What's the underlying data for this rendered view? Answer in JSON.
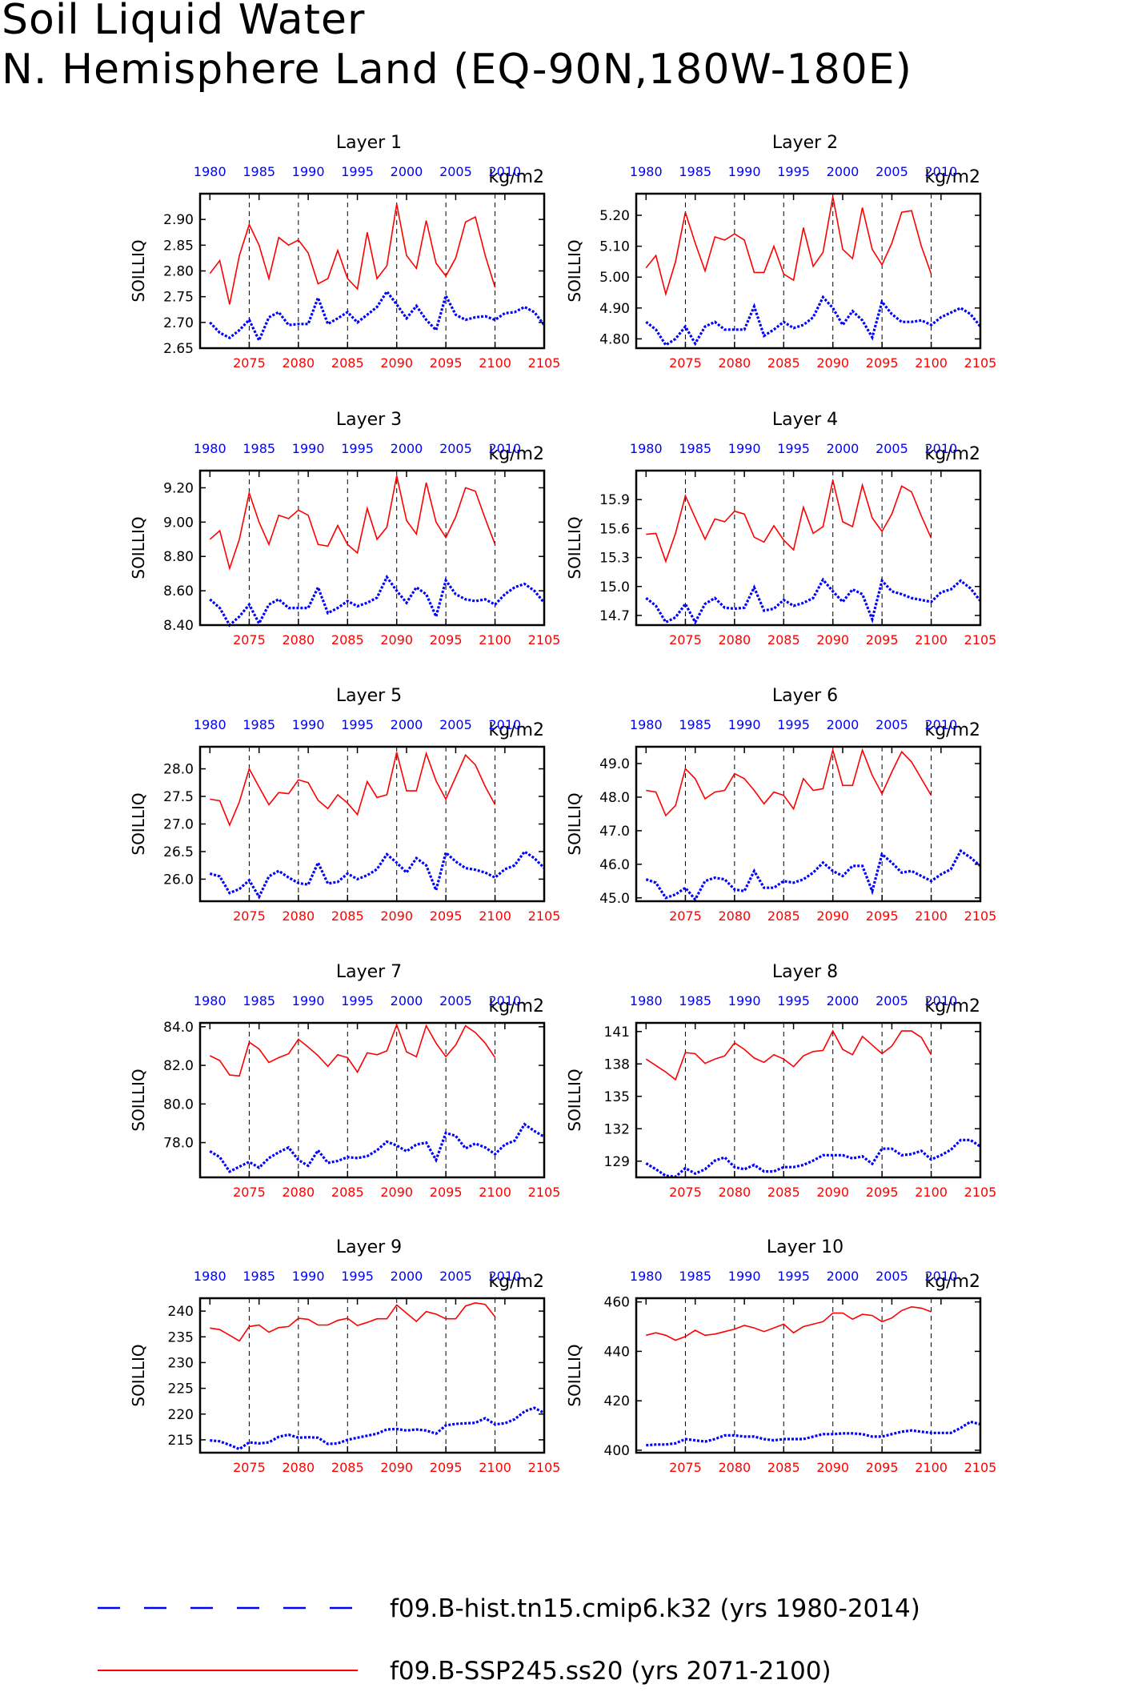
{
  "title": [
    "Soil Liquid Water",
    "N. Hemisphere Land (EQ-90N,180W-180E)"
  ],
  "legend": [
    {
      "label": "f09.B-hist.tn15.cmip6.k32 (yrs 1980-2014)",
      "color": "#0000ff",
      "style": "dashed"
    },
    {
      "label": "f09.B-SSP245.ss20 (yrs 2071-2100)",
      "color": "#ff0000",
      "style": "solid"
    }
  ],
  "colors": {
    "hist": "#0000ff",
    "future": "#ff0000",
    "axis": "#000000"
  },
  "chart_data": [
    {
      "type": "line",
      "title": "Layer 1",
      "units": "kg/m2",
      "ylabel": "SOILLIQ",
      "ylim": [
        2.65,
        2.95
      ],
      "yticks": [
        2.65,
        2.7,
        2.75,
        2.8,
        2.85,
        2.9
      ],
      "yfmt": 2,
      "series": [
        {
          "values": [
            2.7,
            2.68,
            2.67,
            2.685,
            2.705,
            2.665,
            2.71,
            2.72,
            2.695,
            2.697,
            2.697,
            2.748,
            2.697,
            2.708,
            2.72,
            2.7,
            2.715,
            2.73,
            2.76,
            2.735,
            2.708,
            2.732,
            2.705,
            2.685,
            2.752,
            2.715,
            2.705,
            2.71,
            2.712,
            2.705,
            2.718,
            2.72,
            2.73,
            2.72,
            2.695
          ]
        },
        {
          "values": [
            2.795,
            2.82,
            2.735,
            2.83,
            2.89,
            2.85,
            2.785,
            2.865,
            2.85,
            2.86,
            2.835,
            2.775,
            2.785,
            2.84,
            2.785,
            2.765,
            2.875,
            2.785,
            2.81,
            2.93,
            2.83,
            2.805,
            2.898,
            2.815,
            2.79,
            2.825,
            2.895,
            2.905,
            2.83,
            2.768
          ]
        }
      ]
    },
    {
      "type": "line",
      "title": "Layer 2",
      "units": "kg/m2",
      "ylabel": "SOILLIQ",
      "ylim": [
        4.77,
        5.27
      ],
      "yticks": [
        4.8,
        4.9,
        5.0,
        5.1,
        5.2
      ],
      "yfmt": 2,
      "series": [
        {
          "values": [
            4.855,
            4.83,
            4.78,
            4.8,
            4.84,
            4.785,
            4.84,
            4.855,
            4.83,
            4.83,
            4.83,
            4.905,
            4.81,
            4.83,
            4.855,
            4.835,
            4.845,
            4.87,
            4.935,
            4.9,
            4.845,
            4.89,
            4.86,
            4.805,
            4.92,
            4.88,
            4.855,
            4.855,
            4.86,
            4.845,
            4.87,
            4.885,
            4.9,
            4.88,
            4.84
          ]
        },
        {
          "values": [
            5.03,
            5.07,
            4.945,
            5.05,
            5.21,
            5.11,
            5.02,
            5.13,
            5.12,
            5.14,
            5.12,
            5.015,
            5.015,
            5.1,
            5.01,
            4.99,
            5.16,
            5.035,
            5.08,
            5.26,
            5.09,
            5.06,
            5.225,
            5.09,
            5.04,
            5.11,
            5.21,
            5.215,
            5.1,
            5.01
          ]
        }
      ]
    },
    {
      "type": "line",
      "title": "Layer 3",
      "units": "kg/m2",
      "ylabel": "SOILLIQ",
      "ylim": [
        8.4,
        9.3
      ],
      "yticks": [
        8.4,
        8.6,
        8.8,
        9.0,
        9.2
      ],
      "yfmt": 2,
      "series": [
        {
          "values": [
            8.55,
            8.5,
            8.4,
            8.45,
            8.52,
            8.41,
            8.52,
            8.55,
            8.5,
            8.5,
            8.5,
            8.62,
            8.47,
            8.5,
            8.54,
            8.51,
            8.53,
            8.56,
            8.68,
            8.6,
            8.53,
            8.62,
            8.58,
            8.45,
            8.66,
            8.58,
            8.55,
            8.54,
            8.55,
            8.52,
            8.58,
            8.62,
            8.64,
            8.6,
            8.53
          ]
        },
        {
          "values": [
            8.9,
            8.95,
            8.73,
            8.9,
            9.17,
            9.0,
            8.87,
            9.04,
            9.02,
            9.07,
            9.04,
            8.87,
            8.86,
            8.98,
            8.87,
            8.82,
            9.08,
            8.9,
            8.97,
            9.27,
            9.01,
            8.93,
            9.23,
            9.0,
            8.91,
            9.03,
            9.2,
            9.18,
            9.02,
            8.87
          ]
        }
      ]
    },
    {
      "type": "line",
      "title": "Layer 4",
      "units": "kg/m2",
      "ylabel": "SOILLIQ",
      "ylim": [
        14.6,
        16.2
      ],
      "yticks": [
        14.7,
        15.0,
        15.3,
        15.6,
        15.9
      ],
      "yfmt": 1,
      "series": [
        {
          "values": [
            14.88,
            14.8,
            14.63,
            14.68,
            14.82,
            14.63,
            14.82,
            14.88,
            14.78,
            14.77,
            14.78,
            14.99,
            14.75,
            14.77,
            14.86,
            14.8,
            14.83,
            14.88,
            15.07,
            14.95,
            14.84,
            14.97,
            14.92,
            14.66,
            15.06,
            14.95,
            14.92,
            14.88,
            14.86,
            14.84,
            14.94,
            14.97,
            15.06,
            14.98,
            14.85
          ]
        },
        {
          "values": [
            15.54,
            15.55,
            15.26,
            15.55,
            15.94,
            15.71,
            15.49,
            15.7,
            15.67,
            15.78,
            15.75,
            15.51,
            15.46,
            15.63,
            15.48,
            15.38,
            15.82,
            15.55,
            15.62,
            16.1,
            15.67,
            15.62,
            16.05,
            15.71,
            15.57,
            15.75,
            16.04,
            15.98,
            15.73,
            15.5
          ]
        }
      ]
    },
    {
      "type": "line",
      "title": "Layer 5",
      "units": "kg/m2",
      "ylabel": "SOILLIQ",
      "ylim": [
        25.6,
        28.4
      ],
      "yticks": [
        26.0,
        26.5,
        27.0,
        27.5,
        28.0
      ],
      "yfmt": 1,
      "series": [
        {
          "values": [
            26.1,
            26.05,
            25.75,
            25.82,
            25.98,
            25.68,
            26.05,
            26.15,
            26.03,
            25.93,
            25.9,
            26.3,
            25.92,
            25.95,
            26.1,
            26.0,
            26.07,
            26.18,
            26.45,
            26.3,
            26.12,
            26.38,
            26.25,
            25.8,
            26.48,
            26.32,
            26.2,
            26.17,
            26.12,
            26.03,
            26.18,
            26.25,
            26.5,
            26.38,
            26.2
          ]
        },
        {
          "values": [
            27.45,
            27.42,
            26.98,
            27.4,
            28.0,
            27.67,
            27.35,
            27.57,
            27.55,
            27.8,
            27.75,
            27.43,
            27.28,
            27.53,
            27.38,
            27.17,
            27.77,
            27.48,
            27.53,
            28.3,
            27.6,
            27.6,
            28.28,
            27.78,
            27.45,
            27.85,
            28.25,
            28.07,
            27.68,
            27.35
          ]
        }
      ]
    },
    {
      "type": "line",
      "title": "Layer 6",
      "units": "kg/m2",
      "ylabel": "SOILLIQ",
      "ylim": [
        44.9,
        49.5
      ],
      "yticks": [
        45.0,
        46.0,
        47.0,
        48.0,
        49.0
      ],
      "yfmt": 1,
      "series": [
        {
          "values": [
            45.55,
            45.45,
            45.0,
            45.1,
            45.3,
            44.95,
            45.5,
            45.6,
            45.55,
            45.25,
            45.2,
            45.8,
            45.3,
            45.3,
            45.5,
            45.45,
            45.55,
            45.75,
            46.05,
            45.8,
            45.65,
            45.95,
            45.95,
            45.2,
            46.3,
            46.05,
            45.75,
            45.8,
            45.65,
            45.5,
            45.7,
            45.85,
            46.4,
            46.2,
            45.95
          ]
        },
        {
          "values": [
            48.2,
            48.15,
            47.45,
            47.75,
            48.85,
            48.55,
            47.95,
            48.15,
            48.2,
            48.7,
            48.55,
            48.2,
            47.8,
            48.15,
            48.05,
            47.65,
            48.55,
            48.2,
            48.25,
            49.4,
            48.35,
            48.35,
            49.4,
            48.65,
            48.1,
            48.75,
            49.35,
            49.05,
            48.55,
            48.05
          ]
        }
      ]
    },
    {
      "type": "line",
      "title": "Layer 7",
      "units": "kg/m2",
      "ylabel": "SOILLIQ",
      "ylim": [
        76.2,
        84.2
      ],
      "yticks": [
        78.0,
        80.0,
        82.0,
        84.0
      ],
      "yfmt": 1,
      "series": [
        {
          "values": [
            77.55,
            77.25,
            76.5,
            76.75,
            77.0,
            76.7,
            77.2,
            77.5,
            77.75,
            77.1,
            76.8,
            77.6,
            76.95,
            77.05,
            77.25,
            77.2,
            77.3,
            77.6,
            78.05,
            77.85,
            77.55,
            77.9,
            78.0,
            77.1,
            78.5,
            78.35,
            77.7,
            77.95,
            77.75,
            77.4,
            77.9,
            78.1,
            78.95,
            78.6,
            78.3
          ]
        },
        {
          "values": [
            82.5,
            82.25,
            81.5,
            81.45,
            83.2,
            82.85,
            82.15,
            82.4,
            82.6,
            83.35,
            82.95,
            82.5,
            81.95,
            82.55,
            82.4,
            81.65,
            82.65,
            82.55,
            82.75,
            84.1,
            82.7,
            82.45,
            84.05,
            83.15,
            82.45,
            83.05,
            84.05,
            83.7,
            83.15,
            82.4
          ]
        }
      ]
    },
    {
      "type": "line",
      "title": "Layer 8",
      "units": "kg/m2",
      "ylabel": "SOILLIQ",
      "ylim": [
        127.5,
        141.8
      ],
      "yticks": [
        129,
        132,
        135,
        138,
        141
      ],
      "yfmt": 0,
      "series": [
        {
          "values": [
            128.8,
            128.25,
            127.65,
            127.55,
            128.35,
            127.85,
            128.25,
            129.05,
            129.35,
            128.45,
            128.25,
            128.65,
            128.05,
            128.05,
            128.45,
            128.45,
            128.65,
            129.05,
            129.55,
            129.55,
            129.55,
            129.25,
            129.45,
            128.75,
            130.15,
            130.15,
            129.55,
            129.65,
            129.95,
            129.15,
            129.55,
            130.05,
            130.95,
            130.95,
            130.35
          ]
        },
        {
          "values": [
            138.45,
            137.85,
            137.25,
            136.55,
            139.05,
            138.95,
            138.05,
            138.45,
            138.75,
            139.95,
            139.35,
            138.55,
            138.15,
            138.85,
            138.45,
            137.75,
            138.75,
            139.15,
            139.25,
            141.05,
            139.35,
            138.85,
            140.55,
            139.75,
            138.95,
            139.65,
            141.05,
            141.05,
            140.45,
            138.85
          ]
        }
      ]
    },
    {
      "type": "line",
      "title": "Layer 9",
      "units": "kg/m2",
      "ylabel": "SOILLIQ",
      "ylim": [
        212.5,
        242.5
      ],
      "yticks": [
        215,
        220,
        225,
        230,
        235,
        240
      ],
      "yfmt": 0,
      "series": [
        {
          "values": [
            214.9,
            214.7,
            214.0,
            213.2,
            214.5,
            214.3,
            214.5,
            215.6,
            216.0,
            215.4,
            215.5,
            215.4,
            214.2,
            214.3,
            215.0,
            215.4,
            215.8,
            216.2,
            217.0,
            217.1,
            216.8,
            217.0,
            216.8,
            216.2,
            217.8,
            218.1,
            218.2,
            218.3,
            219.2,
            218.0,
            218.2,
            219.0,
            220.5,
            221.2,
            220.2
          ]
        },
        {
          "values": [
            236.7,
            236.4,
            235.3,
            234.2,
            237.0,
            237.3,
            235.9,
            236.8,
            237.0,
            238.6,
            238.4,
            237.3,
            237.3,
            238.2,
            238.6,
            237.2,
            237.8,
            238.5,
            238.5,
            241.2,
            239.6,
            238.0,
            239.9,
            239.4,
            238.5,
            238.5,
            241.0,
            241.6,
            241.3,
            238.9
          ]
        }
      ]
    },
    {
      "type": "line",
      "title": "Layer 10",
      "units": "kg/m2",
      "ylabel": "SOILLIQ",
      "ylim": [
        399.0,
        461.5
      ],
      "yticks": [
        400,
        420,
        440,
        460
      ],
      "yfmt": 0,
      "series": [
        {
          "values": [
            402.0,
            402.3,
            402.3,
            402.8,
            404.5,
            404.0,
            403.5,
            404.5,
            406.0,
            406.0,
            405.5,
            405.5,
            404.5,
            404.0,
            404.5,
            404.5,
            404.5,
            405.5,
            406.5,
            406.5,
            406.8,
            406.8,
            406.5,
            405.5,
            405.5,
            406.5,
            407.5,
            408.0,
            407.5,
            407.0,
            407.0,
            407.0,
            409.0,
            411.5,
            410.5
          ]
        },
        {
          "values": [
            446.5,
            447.5,
            446.5,
            444.5,
            446.0,
            448.5,
            446.5,
            447.0,
            448.0,
            449.0,
            450.5,
            449.5,
            448.0,
            449.5,
            451.0,
            447.5,
            450.0,
            451.0,
            452.0,
            455.5,
            455.5,
            453.0,
            455.0,
            454.5,
            452.0,
            453.5,
            456.5,
            458.0,
            457.5,
            456.0
          ]
        }
      ]
    }
  ],
  "x_axes": {
    "top_ticks": [
      "1980",
      "1985",
      "1990",
      "1995",
      "2000",
      "2005",
      "2010"
    ],
    "bottom_ticks": [
      "2075",
      "2080",
      "2085",
      "2090",
      "2095",
      "2100",
      "2105"
    ],
    "hist_years": [
      1980,
      2014
    ],
    "future_years": [
      2071,
      2100
    ]
  }
}
